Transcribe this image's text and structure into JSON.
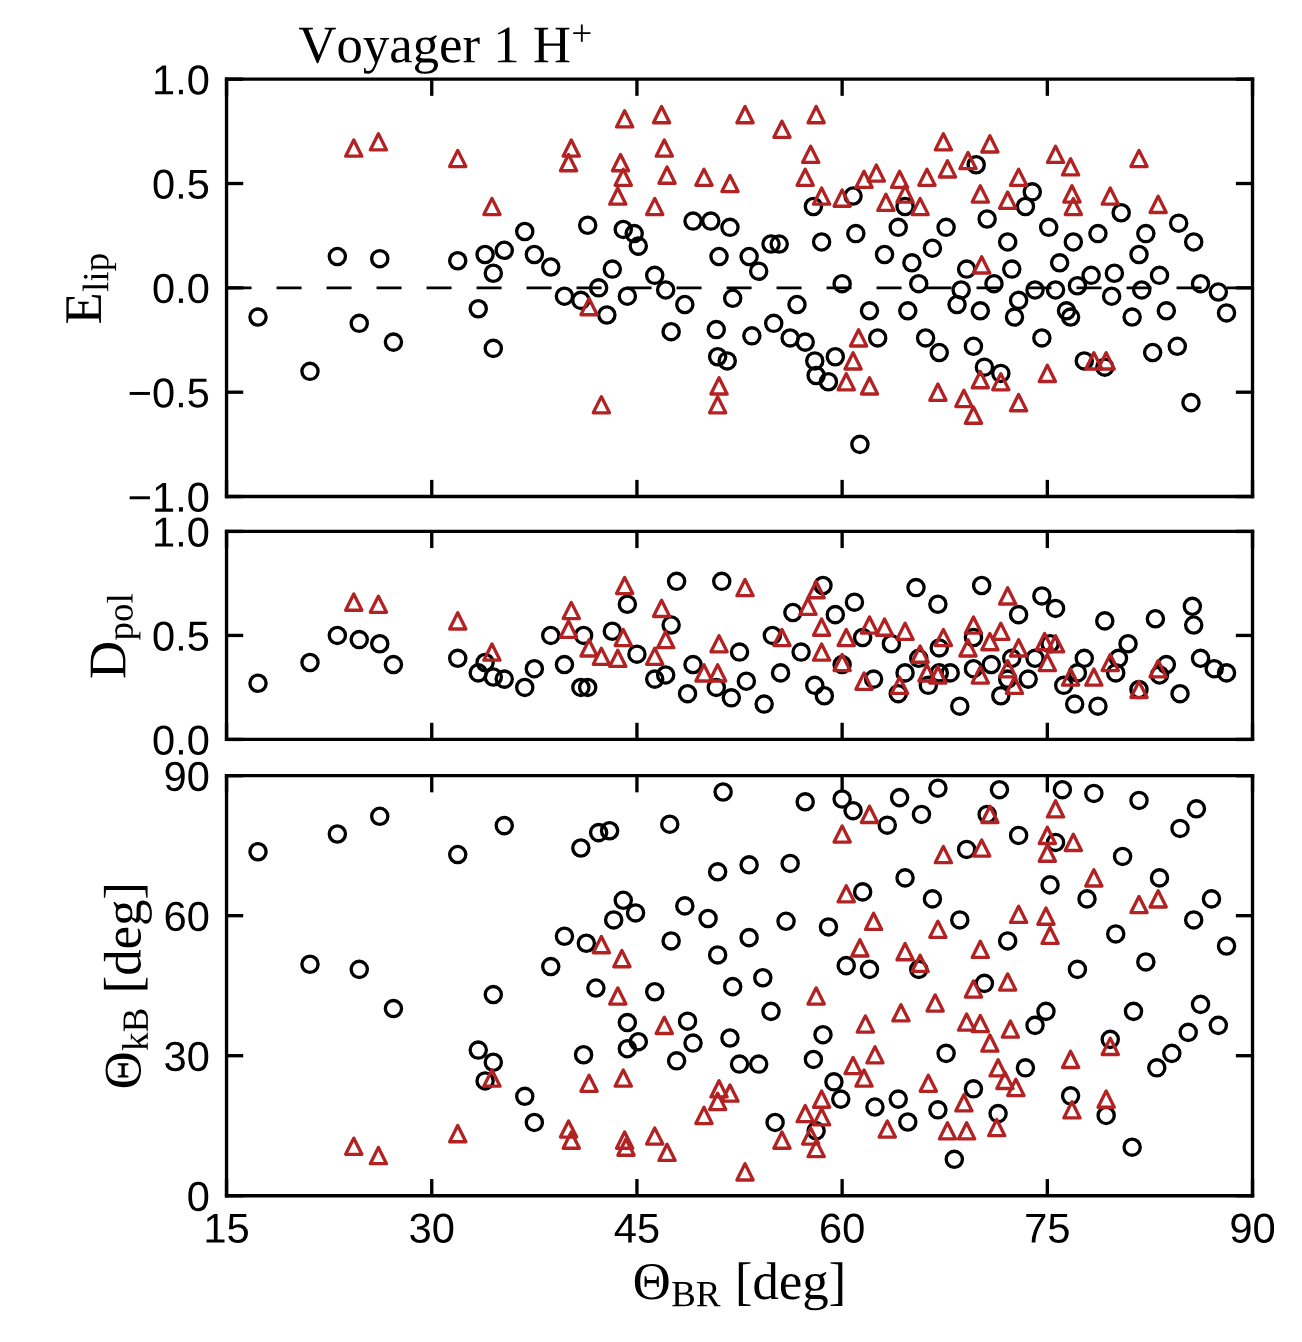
{
  "chart_data": [
    {
      "type": "scatter",
      "title": "Voyager 1 H$^{+}$",
      "ylabel": "E$_{lip}$",
      "tick_labels": "y",
      "xlim": [
        15,
        90
      ],
      "xticks": [
        15,
        30,
        45,
        60,
        75,
        90
      ],
      "ylim": [
        -1,
        1
      ],
      "yticks": [
        {
          "value": -1,
          "label": "−1.0"
        },
        {
          "value": -0.5,
          "label": "−0.5"
        },
        {
          "value": 0,
          "label": "0.0"
        },
        0.5,
        {
          "value": 1,
          "label": "1.0"
        }
      ],
      "ref_lines": [
        {
          "axis": "y",
          "value": 0,
          "color": "#000000",
          "line_style": "dashed"
        }
      ],
      "series": [
        {
          "color": "#000000",
          "marker": "circle",
          "x": [
            17.3,
            21.1,
            23.1,
            24.7,
            26.2,
            27.2,
            31.9,
            33.4,
            33.9,
            34.5,
            34.5,
            35.3,
            36.8,
            37.5,
            38.7,
            39.7,
            40.9,
            41.4,
            42.2,
            42.8,
            43.2,
            44.0,
            44.3,
            44.8,
            45.1,
            46.3,
            47.1,
            47.5,
            48.5,
            49.1,
            50.4,
            50.8,
            51.0,
            50.9,
            51.8,
            51.6,
            52.0,
            53.2,
            53.4,
            53.9,
            54.8,
            55.0,
            55.4,
            56.2,
            56.7,
            57.3,
            57.9,
            58.0,
            58.1,
            59.0,
            58.5,
            59.5,
            60.0,
            60.8,
            61.3,
            61.0,
            62.0,
            62.6,
            63.1,
            64.1,
            64.6,
            64.8,
            65.6,
            66.1,
            66.6,
            67.1,
            67.6,
            68.4,
            69.1,
            69.6,
            69.8,
            70.4,
            70.6,
            71.1,
            71.6,
            72.1,
            72.6,
            73.4,
            73.9,
            74.1,
            74.6,
            75.1,
            75.9,
            76.4,
            76.9,
            77.7,
            78.2,
            78.7,
            79.2,
            79.7,
            80.4,
            81.2,
            81.7,
            82.2,
            82.7,
            83.2,
            83.7,
            84.5,
            84.6,
            85.5,
            85.7,
            86.2,
            87.5,
            88.1,
            65.1,
            68.7,
            72.4,
            75.6,
            77.2,
            79.9,
            81.9,
            72.9,
            76.7,
            70.1
          ],
          "values": [
            -0.14,
            -0.4,
            0.15,
            -0.17,
            0.14,
            -0.26,
            0.13,
            -0.1,
            0.16,
            0.07,
            -0.29,
            0.18,
            0.27,
            0.16,
            0.1,
            -0.04,
            -0.06,
            0.3,
            0.0,
            -0.13,
            0.09,
            0.28,
            -0.04,
            0.26,
            0.2,
            0.06,
            -0.01,
            -0.21,
            -0.08,
            0.32,
            0.32,
            -0.2,
            0.15,
            -0.33,
            0.29,
            -0.35,
            -0.05,
            0.15,
            -0.23,
            0.08,
            0.21,
            -0.17,
            0.21,
            -0.24,
            -0.08,
            -0.26,
            0.39,
            -0.35,
            -0.42,
            -0.45,
            0.22,
            -0.33,
            0.02,
            0.44,
            -0.75,
            0.26,
            -0.11,
            -0.24,
            0.16,
            0.29,
            0.39,
            -0.11,
            0.02,
            -0.24,
            0.19,
            -0.31,
            0.29,
            -0.08,
            0.09,
            -0.28,
            0.59,
            -0.38,
            0.33,
            0.02,
            -0.41,
            0.22,
            -0.14,
            0.39,
            0.46,
            -0.01,
            -0.24,
            0.29,
            0.12,
            -0.11,
            0.22,
            -0.35,
            0.06,
            0.26,
            -0.38,
            -0.04,
            0.36,
            -0.14,
            0.16,
            0.26,
            -0.31,
            0.06,
            -0.11,
            -0.28,
            0.31,
            -0.55,
            0.22,
            0.02,
            -0.02,
            -0.12,
            0.12,
            -0.01,
            0.09,
            -0.01,
            0.01,
            0.07,
            -0.01,
            -0.06,
            -0.14,
            -0.11
          ]
        },
        {
          "color": "#b22222",
          "marker": "triangle",
          "x": [
            24.3,
            26.1,
            31.9,
            34.4,
            40.2,
            40.0,
            41.5,
            42.4,
            43.8,
            44.1,
            44.0,
            43.6,
            46.3,
            46.8,
            47.0,
            47.2,
            49.9,
            51.0,
            50.9,
            51.8,
            52.9,
            55.6,
            58.1,
            57.7,
            57.3,
            58.5,
            60.0,
            60.3,
            60.8,
            61.2,
            61.6,
            62.0,
            62.5,
            63.2,
            64.2,
            64.6,
            65.7,
            66.2,
            67.0,
            67.4,
            67.7,
            68.9,
            69.2,
            69.6,
            70.1,
            70.1,
            70.2,
            70.8,
            71.6,
            72.1,
            72.9,
            72.9,
            75.0,
            75.6,
            76.7,
            76.8,
            76.9,
            78.4,
            79.3,
            79.6,
            81.7,
            83.1
          ],
          "values": [
            0.67,
            0.7,
            0.62,
            0.39,
            0.67,
            0.6,
            -0.09,
            -0.56,
            0.6,
            0.81,
            0.53,
            0.44,
            0.39,
            0.83,
            0.67,
            0.54,
            0.53,
            -0.47,
            -0.56,
            0.5,
            0.83,
            0.76,
            0.83,
            0.64,
            0.53,
            0.44,
            0.43,
            -0.45,
            -0.35,
            -0.24,
            0.52,
            -0.47,
            0.55,
            0.41,
            0.52,
            0.45,
            0.39,
            0.53,
            -0.5,
            0.7,
            0.57,
            -0.53,
            0.61,
            -0.61,
            0.45,
            -0.44,
            0.11,
            0.69,
            -0.45,
            0.42,
            -0.55,
            0.53,
            -0.41,
            0.64,
            0.58,
            0.45,
            0.39,
            -0.35,
            -0.35,
            0.44,
            0.62,
            0.4
          ]
        }
      ]
    },
    {
      "type": "scatter",
      "ylabel": "D$_{pol}$",
      "tick_labels": "y",
      "xlim": [
        15,
        90
      ],
      "xticks": [
        15,
        30,
        45,
        60,
        75,
        90
      ],
      "ylim": [
        0,
        1
      ],
      "yticks": [
        {
          "value": 0,
          "label": "0.0"
        },
        0.5,
        {
          "value": 1,
          "label": "1.0"
        }
      ],
      "series": [
        {
          "color": "#000000",
          "marker": "circle",
          "x": [
            17.3,
            21.1,
            23.1,
            24.7,
            26.2,
            27.2,
            31.9,
            33.4,
            33.9,
            34.5,
            35.3,
            36.8,
            37.5,
            38.7,
            39.7,
            40.9,
            41.4,
            41.1,
            43.2,
            44.3,
            45.0,
            46.3,
            47.1,
            47.5,
            47.9,
            48.7,
            49.1,
            50.8,
            51.2,
            51.9,
            52.5,
            53.0,
            54.3,
            54.9,
            55.5,
            56.4,
            57.0,
            58.0,
            58.6,
            58.7,
            59.5,
            60.0,
            60.9,
            61.5,
            62.3,
            63.6,
            64.1,
            65.4,
            65.6,
            66.3,
            67.0,
            67.1,
            67.9,
            68.6,
            69.6,
            70.2,
            70.9,
            71.6,
            72.4,
            72.9,
            73.6,
            74.6,
            75.2,
            75.6,
            76.2,
            77.0,
            77.7,
            78.7,
            79.2,
            80.0,
            80.9,
            81.7,
            82.9,
            83.7,
            84.7,
            85.6,
            85.7,
            86.2,
            87.2,
            88.1,
            67.1,
            72.1,
            77.2,
            80.2,
            74.1,
            69.6,
            64.6,
            83.2
          ],
          "values": [
            0.27,
            0.37,
            0.5,
            0.48,
            0.46,
            0.36,
            0.39,
            0.32,
            0.37,
            0.3,
            0.29,
            0.25,
            0.34,
            0.5,
            0.36,
            0.25,
            0.25,
            0.5,
            0.52,
            0.65,
            0.41,
            0.29,
            0.31,
            0.55,
            0.76,
            0.22,
            0.36,
            0.25,
            0.76,
            0.2,
            0.42,
            0.28,
            0.17,
            0.5,
            0.32,
            0.61,
            0.42,
            0.26,
            0.74,
            0.21,
            0.6,
            0.36,
            0.66,
            0.49,
            0.29,
            0.46,
            0.22,
            0.73,
            0.39,
            0.26,
            0.65,
            0.44,
            0.32,
            0.16,
            0.49,
            0.74,
            0.36,
            0.21,
            0.39,
            0.6,
            0.29,
            0.69,
            0.46,
            0.63,
            0.26,
            0.17,
            0.39,
            0.16,
            0.57,
            0.32,
            0.46,
            0.24,
            0.58,
            0.36,
            0.22,
            0.64,
            0.55,
            0.39,
            0.34,
            0.32,
            0.32,
            0.29,
            0.32,
            0.39,
            0.39,
            0.34,
            0.32,
            0.31
          ]
        },
        {
          "color": "#b22222",
          "marker": "triangle",
          "x": [
            24.3,
            26.1,
            31.9,
            34.4,
            40.2,
            40.0,
            41.5,
            42.4,
            43.6,
            44.1,
            44.0,
            46.3,
            46.8,
            47.1,
            49.9,
            50.9,
            51.0,
            52.9,
            55.6,
            57.5,
            58.1,
            58.5,
            58.5,
            60.0,
            60.3,
            61.6,
            62.0,
            63.1,
            64.2,
            64.6,
            65.7,
            66.2,
            67.0,
            67.4,
            69.2,
            69.6,
            70.1,
            70.8,
            71.6,
            72.1,
            72.1,
            72.6,
            72.9,
            74.8,
            75.0,
            75.6,
            76.7,
            78.4,
            79.6,
            81.7,
            83.1
          ],
          "values": [
            0.66,
            0.65,
            0.57,
            0.42,
            0.62,
            0.53,
            0.44,
            0.4,
            0.39,
            0.74,
            0.49,
            0.4,
            0.63,
            0.48,
            0.32,
            0.32,
            0.46,
            0.73,
            0.49,
            0.64,
            0.72,
            0.54,
            0.42,
            0.37,
            0.49,
            0.28,
            0.55,
            0.54,
            0.26,
            0.52,
            0.41,
            0.32,
            0.31,
            0.49,
            0.44,
            0.55,
            0.31,
            0.47,
            0.52,
            0.69,
            0.34,
            0.26,
            0.44,
            0.47,
            0.37,
            0.46,
            0.3,
            0.3,
            0.37,
            0.24,
            0.34
          ]
        }
      ]
    },
    {
      "type": "scatter",
      "ylabel": "Θ$_{kB}$ [deg]",
      "xlabel": "Θ$_{BR}$ [deg]",
      "xlim": [
        15,
        90
      ],
      "xticks": [
        15,
        30,
        45,
        60,
        75,
        90
      ],
      "ylim": [
        0,
        90
      ],
      "yticks": [
        0,
        30,
        60,
        90
      ],
      "series": [
        {
          "color": "#000000",
          "marker": "circle",
          "x": [
            17.3,
            21.1,
            23.1,
            24.7,
            26.2,
            27.2,
            31.9,
            33.4,
            34.5,
            33.9,
            34.5,
            35.3,
            36.8,
            37.5,
            38.7,
            39.7,
            40.9,
            41.3,
            41.1,
            42.0,
            42.2,
            43.0,
            43.3,
            44.0,
            44.3,
            44.3,
            44.9,
            45.1,
            46.3,
            47.4,
            47.5,
            47.9,
            48.5,
            48.7,
            49.1,
            50.2,
            50.9,
            51.3,
            50.9,
            51.8,
            52.0,
            52.5,
            53.2,
            53.2,
            53.9,
            54.2,
            54.8,
            55.1,
            55.9,
            56.2,
            57.3,
            57.9,
            58.1,
            58.6,
            59.0,
            59.4,
            60.0,
            59.9,
            60.3,
            60.8,
            61.5,
            62.0,
            62.4,
            63.3,
            64.1,
            64.2,
            64.6,
            64.8,
            65.6,
            65.8,
            66.6,
            67.0,
            67.0,
            67.6,
            68.2,
            68.6,
            69.1,
            69.6,
            70.4,
            70.6,
            71.4,
            71.5,
            72.1,
            72.9,
            73.4,
            74.1,
            74.9,
            75.2,
            75.6,
            76.1,
            76.7,
            77.2,
            77.9,
            78.4,
            79.3,
            79.6,
            80.0,
            80.5,
            81.2,
            81.3,
            81.7,
            82.2,
            83.0,
            83.2,
            84.1,
            84.7,
            85.3,
            85.7,
            85.9,
            86.2,
            87.0,
            87.5,
            88.1
          ],
          "values": [
            73.7,
            49.6,
            77.5,
            48.5,
            81.3,
            40.1,
            73.1,
            31.2,
            43.1,
            24.6,
            28.6,
            79.3,
            21.3,
            15.7,
            49.1,
            55.6,
            74.5,
            54.1,
            30.2,
            44.5,
            77.8,
            78.2,
            59.1,
            63.3,
            37.1,
            31.5,
            60.6,
            33.0,
            43.7,
            79.6,
            54.6,
            28.9,
            62.1,
            37.4,
            32.7,
            59.4,
            51.6,
            86.5,
            69.4,
            33.8,
            44.8,
            28.2,
            55.3,
            70.9,
            28.2,
            46.7,
            39.5,
            15.7,
            58.8,
            71.2,
            84.4,
            29.2,
            13.9,
            34.5,
            57.6,
            24.4,
            85.0,
            20.7,
            49.3,
            82.5,
            65.1,
            48.5,
            19.0,
            79.4,
            20.7,
            85.3,
            68.1,
            15.8,
            48.5,
            81.7,
            63.6,
            18.4,
            87.3,
            30.5,
            7.8,
            59.1,
            74.2,
            22.9,
            45.5,
            81.7,
            17.6,
            87.0,
            54.6,
            77.2,
            27.4,
            36.5,
            39.5,
            66.6,
            75.7,
            87.0,
            21.4,
            48.5,
            63.6,
            86.2,
            17.2,
            33.5,
            56.1,
            72.7,
            10.4,
            39.5,
            84.7,
            50.1,
            27.4,
            68.1,
            30.5,
            78.7,
            35.0,
            59.1,
            82.9,
            41.0,
            63.6,
            36.5,
            53.5
          ]
        },
        {
          "color": "#b22222",
          "marker": "triangle",
          "x": [
            24.3,
            26.1,
            31.9,
            34.4,
            40.0,
            40.2,
            41.5,
            42.4,
            43.6,
            43.9,
            44.0,
            44.1,
            44.2,
            46.3,
            47.0,
            47.2,
            49.9,
            50.9,
            51.0,
            51.8,
            52.9,
            55.6,
            57.3,
            57.7,
            58.1,
            58.1,
            58.5,
            58.5,
            60.0,
            60.3,
            60.8,
            61.3,
            61.6,
            61.7,
            62.0,
            62.3,
            62.4,
            63.3,
            64.3,
            64.6,
            65.7,
            66.3,
            66.8,
            67.0,
            67.4,
            67.7,
            68.9,
            69.1,
            69.1,
            69.6,
            70.1,
            70.1,
            70.2,
            70.8,
            70.8,
            71.4,
            71.3,
            71.9,
            72.1,
            72.3,
            72.7,
            72.9,
            74.9,
            75.0,
            75.0,
            75.2,
            75.6,
            76.7,
            76.9,
            76.8,
            78.4,
            79.3,
            79.6,
            81.7,
            83.1
          ],
          "values": [
            10.6,
            8.6,
            13.3,
            25.2,
            14.3,
            11.9,
            24.1,
            53.8,
            42.8,
            50.8,
            25.2,
            11.9,
            10.4,
            12.8,
            36.5,
            9.3,
            17.2,
            20.2,
            22.9,
            22.0,
            5.1,
            11.9,
            17.6,
            12.8,
            42.8,
            10.1,
            20.7,
            16.9,
            77.5,
            64.7,
            27.9,
            53.1,
            25.2,
            36.8,
            81.7,
            58.8,
            30.2,
            14.3,
            39.2,
            52.3,
            49.8,
            24.1,
            41.3,
            57.1,
            73.1,
            13.9,
            19.9,
            13.9,
            37.2,
            44.3,
            52.8,
            36.9,
            74.5,
            81.7,
            32.7,
            27.4,
            14.6,
            24.7,
            45.8,
            35.7,
            23.2,
            60.3,
            59.9,
            77.2,
            73.4,
            55.8,
            82.9,
            29.2,
            75.7,
            18.4,
            68.1,
            20.7,
            32.0,
            62.4,
            63.6
          ]
        }
      ]
    }
  ]
}
